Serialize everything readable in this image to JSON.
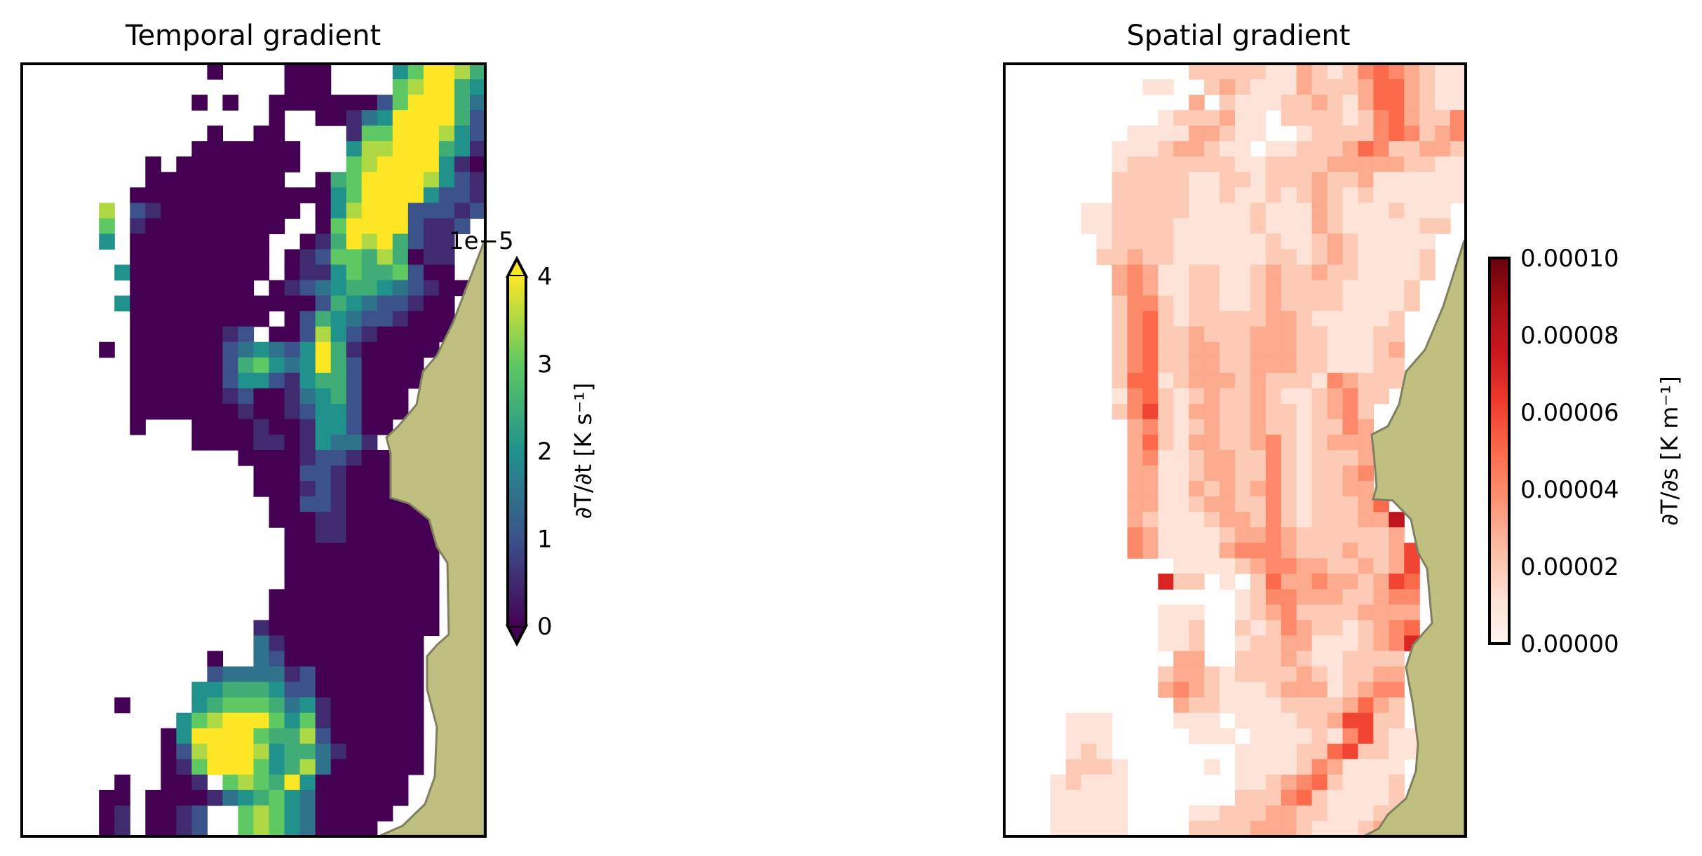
{
  "chart_data": [
    {
      "type": "heatmap",
      "title": "Temporal gradient",
      "colormap": "viridis",
      "clim": [
        0,
        4
      ],
      "extend": "both",
      "offset_text": "1e−5",
      "cbar_label": "∂T/∂t [K s⁻¹]",
      "cbar_ticks": [
        "0",
        "1",
        "2",
        "3",
        "4"
      ],
      "cbar_tick_values": [
        0,
        1,
        2,
        3,
        4
      ],
      "cell_encoding": "digit d = value of d*0.5 (x1e-5 K/s); '.' = no data",
      "digit_scale": 0.5,
      "land_color": "#bfbf80",
      "grid": [
        "............0....000....468875",
        ".................000....678854",
        "...........0.0..00000002688853",
        "................0..00134888852",
        "............0..00....166888742",
        "...........0000000...477888541",
        "........0.00000000...678888410",
        "........000000000..05688887421",
        ".......00000000000004688884221",
        ".....7.21000000000.04788822212",
        ".....6.1000000000..0688882112.",
        ".....4.000000000..0158785211..",
        ".......000000000.01266575011..",
        "......4000000000.01146556200..",
        ".......00000000.0123455432100.",
        "......400000000000025432210 0..",
        ".......000000000.02543221000..",
        ".......00000012.002742100000..",
        ".....0.00000023432485100000...",
        ".......0000002564348520000....",
        ".......0000002442145520000....",
        ".......000000120013452000.....",
        ".......000000010012442000.....",
        ".......0...00001001442 00......",
        "...........000011014331.......",
        "..............0000122100......",
        "...............000221000......",
        "...............000121000......",
        "................0022100000....",
        "................00011000000...",
        ".................0011000000...",
        ".................0000000000...",
        ".................0000000000...",
        ".................0000000000...",
        "................00000000000...",
        "................00000000000...",
        "...............100000000000...",
        "...............31000000000....",
        "............0..32000000000....",
        "............23333120000000....",
        "...........445554220000000....",
        "......0....456665341000000....",
        "..........4678886461000000....",
        ".........04888865572000000....",
        ".........02788874553100000....",
        ".........01688864573000000....",
        "......0..001.676584000000.....",
        ".....00.00001345643000000.....",
        ".....01.0012..6764300000......",
        ".....01.0012..676430000......."
      ]
    },
    {
      "type": "heatmap",
      "title": "Spatial gradient",
      "colormap": "Reds",
      "clim": [
        0,
        0.0001
      ],
      "cbar_label": "∂T/∂s [K m⁻¹]",
      "cbar_ticks": [
        "0.00000",
        "0.00002",
        "0.00004",
        "0.00006",
        "0.00008",
        "0.00010"
      ],
      "cbar_tick_values": [
        0,
        2e-05,
        4e-05,
        6e-05,
        8e-05,
        0.0001
      ],
      "cell_encoding": "digit d = value of d*1e-5 K/m; '.' = no data",
      "digit_scale": 1e-05,
      "land_color": "#bfbf80",
      "grid": [
        "............222221132124543211",
        ".........11..23211132223553211",
        "............3.2111223213553211",
        "..........1222311.222212453224",
        "........111133211..12222454234",
        ".......111233211.1122235422332",
        ".......12222222112222333332211",
        ".......22222112212223223111111",
        ".......22222112112123212111111",
        ".....112222211112111321112111.",
        ".....112222111112111321111122.",
        "......1222211111121123211111..",
        "......2232211111122123211112..",
        ".......343112211232232211112..",
        ".......34311221123222211112...",
        ".......24421221123222211112...",
        ".......2452122222332111112....",
        ".......2452232223332211122....",
        ".......2452233223332211123....",
        ".......2452233223332211122....",
        ".......2551233323222143222....",
        ".......145212322321123422.....",
        ".......24621332232212342......",
        "........3421232232212243......",
        "........3521332234212333......",
        "........3411233224212223......",
        "........3311233224212234......",
        "........3311323234212233......",
        "........33112332242122235.....",
        "........321112332421222338....",
        "........431111233432222223....",
        "........4311113444322232236...",
        "...........1111234433223236...",
        "..........722.1.25334332365...",
        "...............124433322344...",
        "..........111..123422223333...",
        "..........112..212432212345...",
        "..........112..122331112347...",
        "...........33..22232112222....",
        "..........2332122223212233....",
        "..........3432111233312344....",
        "...........322111122223532....",
        "....111....111.11112236622....",
        "....111.....111.11112146211...",
        "....121........111122562211...",
        "....2221.....1.11112431111....",
        "...12111.......11234521112....",
        "...11111.......22245211112....",
        "...11111....11222332211122....",
        "...11111....2222333211123....."
      ]
    }
  ]
}
